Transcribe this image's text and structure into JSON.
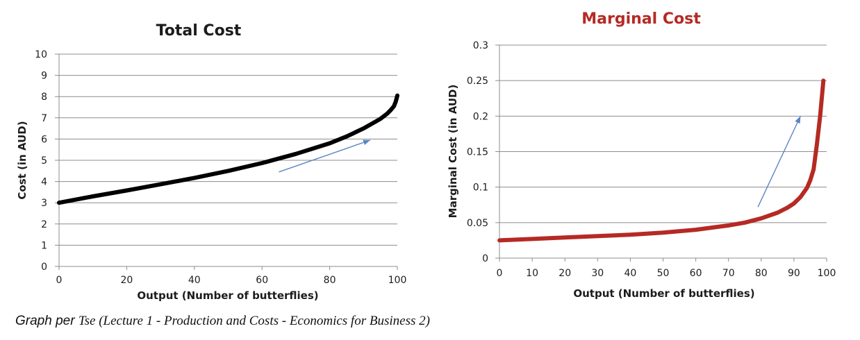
{
  "charts": [
    {
      "type": "line",
      "title": "Total Cost",
      "xlabel": "Output (Number of butterflies)",
      "ylabel": "Cost (in AUD)",
      "xlim": [
        0,
        100
      ],
      "ylim": [
        0,
        10
      ],
      "xticks": [
        0,
        20,
        40,
        60,
        80,
        100
      ],
      "yticks": [
        0,
        1,
        2,
        3,
        4,
        5,
        6,
        7,
        8,
        9,
        10
      ],
      "grid": true,
      "line_color": "#000000",
      "arrow_color": "#5b84c4",
      "arrow": {
        "from": [
          65,
          4.45
        ],
        "to": [
          92,
          5.95
        ]
      },
      "series": [
        {
          "name": "Total Cost",
          "x": [
            0,
            10,
            20,
            30,
            40,
            50,
            60,
            70,
            80,
            85,
            90,
            95,
            97,
            98,
            99,
            99.5,
            100
          ],
          "y": [
            3.0,
            3.3,
            3.58,
            3.87,
            4.17,
            4.5,
            4.87,
            5.3,
            5.8,
            6.12,
            6.5,
            6.95,
            7.2,
            7.36,
            7.55,
            7.75,
            8.05
          ]
        }
      ]
    },
    {
      "type": "line",
      "title": "Marginal Cost",
      "xlabel": "Output (Number of butterflies)",
      "ylabel": "Marginal Cost (in AUD)",
      "xlim": [
        0,
        100
      ],
      "ylim": [
        0,
        0.3
      ],
      "xticks": [
        0,
        10,
        20,
        30,
        40,
        50,
        60,
        70,
        80,
        90,
        100
      ],
      "yticks": [
        0,
        0.05,
        0.1,
        0.15,
        0.2,
        0.25,
        0.3
      ],
      "grid": true,
      "line_color": "#b52a24",
      "arrow_color": "#5b84c4",
      "arrow": {
        "from": [
          79,
          0.072
        ],
        "to": [
          92,
          0.2
        ]
      },
      "series": [
        {
          "name": "Marginal Cost",
          "x": [
            0,
            10,
            20,
            30,
            40,
            50,
            60,
            70,
            75,
            80,
            85,
            88,
            90,
            92,
            94,
            95,
            96,
            97,
            98,
            99
          ],
          "y": [
            0.025,
            0.027,
            0.029,
            0.031,
            0.033,
            0.036,
            0.04,
            0.046,
            0.05,
            0.056,
            0.064,
            0.071,
            0.077,
            0.086,
            0.099,
            0.11,
            0.125,
            0.16,
            0.2,
            0.25
          ]
        }
      ]
    }
  ],
  "caption": {
    "lead": "Graph per",
    "source": "Tse (Lecture 1 - Production and Costs - Economics for Business 2)"
  }
}
